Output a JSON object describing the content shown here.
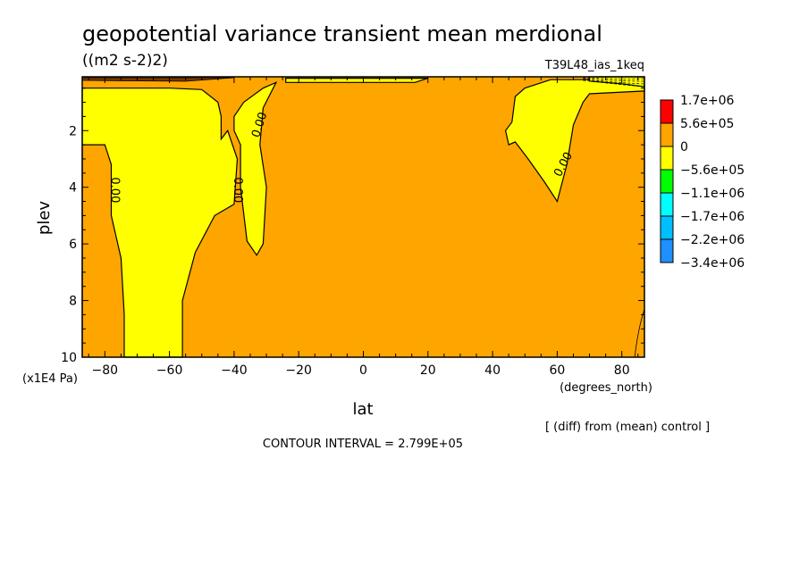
{
  "chart_data": {
    "type": "heatmap",
    "title": "geopotential variance transient mean merdional",
    "units": "((m2 s-2)2)",
    "experiment": "T39L48_ias_1keq",
    "xlabel": "lat",
    "xunits": "(degrees_north)",
    "ylabel": "plev",
    "yunits": "(x1E4 Pa)",
    "xlim": [
      -87,
      87
    ],
    "ylim": [
      0.1,
      10
    ],
    "y_inverted": true,
    "x_ticks": [
      -80,
      -60,
      -40,
      -20,
      0,
      20,
      40,
      60,
      80
    ],
    "x_tick_labels": [
      "−80",
      "−60",
      "−40",
      "−20",
      "0",
      "20",
      "40",
      "60",
      "80"
    ],
    "y_ticks": [
      2,
      4,
      6,
      8,
      10
    ],
    "y_tick_labels": [
      "2",
      "4",
      "6",
      "8",
      "10"
    ],
    "contour_labels": [
      "0.00",
      "0.00",
      "0.00",
      "0.00"
    ],
    "contour_interval_text": "CONTOUR INTERVAL = 2.799E+05",
    "note": "[ (diff) from (mean) control ]",
    "legend_placement": "right",
    "legend": [
      {
        "label": "1.7e+06",
        "color": "#ff0000"
      },
      {
        "label": "5.6e+05",
        "color": "#ffa500"
      },
      {
        "label": "0",
        "color": "#ffff00"
      },
      {
        "label": "−5.6e+05",
        "color": "#00ff00"
      },
      {
        "label": "−1.1e+06",
        "color": "#00ffff"
      },
      {
        "label": "−1.7e+06",
        "color": "#00bfff"
      },
      {
        "label": "−2.2e+06",
        "color": "#1e90ff"
      },
      {
        "label": "−3.4e+06",
        "color": ""
      }
    ],
    "background_color": "#ffa500",
    "zero_region_color": "#ffff00",
    "regions": [
      {
        "label": "southern-yellow-band",
        "points": [
          [
            -87,
            10
          ],
          [
            -87,
            2.5
          ],
          [
            -80,
            2.5
          ],
          [
            -78,
            3.2
          ],
          [
            -78,
            5.0
          ],
          [
            -75,
            6.5
          ],
          [
            -74,
            8.5
          ],
          [
            -74,
            10
          ],
          [
            -56,
            10
          ],
          [
            -56,
            8.0
          ],
          [
            -52,
            6.3
          ],
          [
            -46,
            5.0
          ],
          [
            -40,
            4.6
          ],
          [
            -39,
            3.0
          ],
          [
            -42,
            2.0
          ],
          [
            -44,
            2.3
          ],
          [
            -44,
            1.5
          ],
          [
            -45,
            1.0
          ],
          [
            -50,
            0.55
          ],
          [
            -60,
            0.5
          ],
          [
            -87,
            0.5
          ]
        ]
      },
      {
        "label": "narrow-yellow-tongue",
        "points": [
          [
            -40,
            1.5
          ],
          [
            -37,
            1.0
          ],
          [
            -31,
            0.5
          ],
          [
            -27,
            0.3
          ],
          [
            -31,
            1.2
          ],
          [
            -32,
            2.5
          ],
          [
            -30,
            4.0
          ],
          [
            -31,
            6.0
          ],
          [
            -33,
            6.4
          ],
          [
            -36,
            5.9
          ],
          [
            -38,
            4.0
          ],
          [
            -38,
            2.5
          ],
          [
            -40,
            2.0
          ]
        ]
      },
      {
        "label": "top-yellow-strip",
        "points": [
          [
            -24,
            0.3
          ],
          [
            -24,
            0.15
          ],
          [
            20,
            0.15
          ],
          [
            16,
            0.3
          ]
        ]
      },
      {
        "label": "northern-yellow-lobe",
        "points": [
          [
            44,
            2.0
          ],
          [
            46,
            1.7
          ],
          [
            47,
            0.8
          ],
          [
            50,
            0.5
          ],
          [
            58,
            0.2
          ],
          [
            76,
            0.2
          ],
          [
            87,
            0.45
          ],
          [
            87,
            0.6
          ],
          [
            70,
            0.7
          ],
          [
            68,
            1.0
          ],
          [
            65,
            1.8
          ],
          [
            63,
            3.2
          ],
          [
            60,
            4.5
          ],
          [
            56,
            3.8
          ],
          [
            51,
            3.0
          ],
          [
            47,
            2.4
          ],
          [
            45,
            2.5
          ]
        ]
      },
      {
        "label": "north-pole-cap",
        "points": [
          [
            70,
            0.25
          ],
          [
            70,
            0.1
          ],
          [
            87,
            0.1
          ],
          [
            87,
            0.45
          ],
          [
            80,
            0.35
          ]
        ]
      }
    ]
  }
}
